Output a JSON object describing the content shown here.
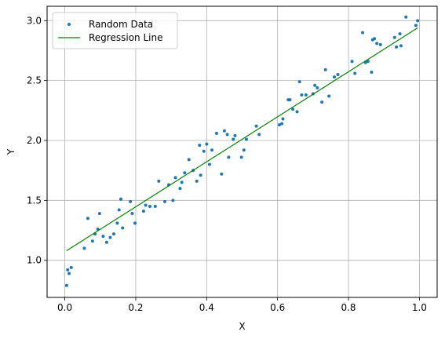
{
  "chart_data": {
    "type": "scatter",
    "xlabel": "X",
    "ylabel": "Y",
    "xlim": [
      -0.05,
      1.05
    ],
    "ylim": [
      0.69,
      3.12
    ],
    "xticks": [
      0.0,
      0.2,
      0.4,
      0.6,
      0.8,
      1.0
    ],
    "xtick_labels": [
      "0.0",
      "0.2",
      "0.4",
      "0.6",
      "0.8",
      "1.0"
    ],
    "yticks": [
      1.0,
      1.5,
      2.0,
      2.5,
      3.0
    ],
    "ytick_labels": [
      "1.0",
      "1.5",
      "2.0",
      "2.5",
      "3.0"
    ],
    "grid": true,
    "legend_position": "upper-left",
    "series": [
      {
        "name": "Random Data",
        "kind": "scatter",
        "color": "#1f77b4",
        "points": [
          [
            0.005,
            0.79
          ],
          [
            0.008,
            0.92
          ],
          [
            0.012,
            0.89
          ],
          [
            0.018,
            0.94
          ],
          [
            0.055,
            1.1
          ],
          [
            0.065,
            1.35
          ],
          [
            0.078,
            1.16
          ],
          [
            0.085,
            1.22
          ],
          [
            0.093,
            1.26
          ],
          [
            0.098,
            1.39
          ],
          [
            0.108,
            1.2
          ],
          [
            0.118,
            1.15
          ],
          [
            0.128,
            1.19
          ],
          [
            0.138,
            1.22
          ],
          [
            0.148,
            1.31
          ],
          [
            0.153,
            1.42
          ],
          [
            0.158,
            1.51
          ],
          [
            0.163,
            1.27
          ],
          [
            0.185,
            1.49
          ],
          [
            0.19,
            1.39
          ],
          [
            0.198,
            1.31
          ],
          [
            0.222,
            1.41
          ],
          [
            0.228,
            1.46
          ],
          [
            0.24,
            1.45
          ],
          [
            0.255,
            1.45
          ],
          [
            0.265,
            1.66
          ],
          [
            0.282,
            1.49
          ],
          [
            0.293,
            1.63
          ],
          [
            0.305,
            1.5
          ],
          [
            0.312,
            1.69
          ],
          [
            0.325,
            1.6
          ],
          [
            0.33,
            1.65
          ],
          [
            0.338,
            1.73
          ],
          [
            0.35,
            1.84
          ],
          [
            0.362,
            1.75
          ],
          [
            0.372,
            1.66
          ],
          [
            0.38,
            1.96
          ],
          [
            0.383,
            1.71
          ],
          [
            0.392,
            1.91
          ],
          [
            0.4,
            1.97
          ],
          [
            0.408,
            1.8
          ],
          [
            0.415,
            1.92
          ],
          [
            0.428,
            2.06
          ],
          [
            0.442,
            1.72
          ],
          [
            0.45,
            2.08
          ],
          [
            0.458,
            2.05
          ],
          [
            0.462,
            1.86
          ],
          [
            0.475,
            2.01
          ],
          [
            0.48,
            2.04
          ],
          [
            0.498,
            1.86
          ],
          [
            0.505,
            1.92
          ],
          [
            0.512,
            2.01
          ],
          [
            0.54,
            2.12
          ],
          [
            0.548,
            2.05
          ],
          [
            0.605,
            2.13
          ],
          [
            0.612,
            2.14
          ],
          [
            0.615,
            2.18
          ],
          [
            0.63,
            2.34
          ],
          [
            0.635,
            2.34
          ],
          [
            0.643,
            2.26
          ],
          [
            0.655,
            2.24
          ],
          [
            0.662,
            2.49
          ],
          [
            0.668,
            2.38
          ],
          [
            0.68,
            2.38
          ],
          [
            0.7,
            2.39
          ],
          [
            0.705,
            2.46
          ],
          [
            0.712,
            2.44
          ],
          [
            0.725,
            2.32
          ],
          [
            0.735,
            2.59
          ],
          [
            0.745,
            2.37
          ],
          [
            0.76,
            2.53
          ],
          [
            0.77,
            2.55
          ],
          [
            0.81,
            2.66
          ],
          [
            0.818,
            2.56
          ],
          [
            0.84,
            2.9
          ],
          [
            0.848,
            2.65
          ],
          [
            0.855,
            2.66
          ],
          [
            0.865,
            2.57
          ],
          [
            0.868,
            2.84
          ],
          [
            0.873,
            2.85
          ],
          [
            0.88,
            2.81
          ],
          [
            0.89,
            2.8
          ],
          [
            0.93,
            2.86
          ],
          [
            0.935,
            2.78
          ],
          [
            0.945,
            2.89
          ],
          [
            0.948,
            2.79
          ],
          [
            0.962,
            3.03
          ],
          [
            0.99,
            2.96
          ],
          [
            0.995,
            3.0
          ]
        ]
      },
      {
        "name": "Regression Line",
        "kind": "line",
        "color": "#008000",
        "points": [
          [
            0.005,
            1.08
          ],
          [
            0.995,
            2.94
          ]
        ]
      }
    ]
  }
}
